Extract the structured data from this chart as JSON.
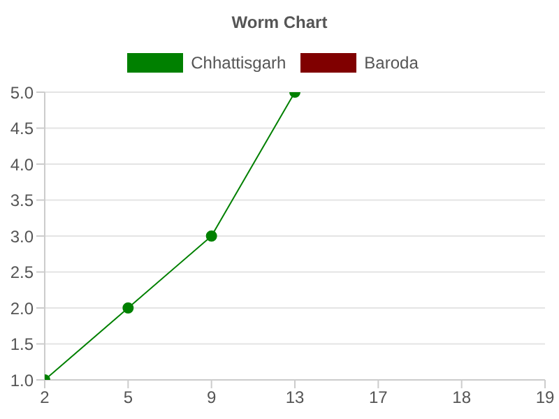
{
  "chart_data": {
    "type": "line",
    "title": "Worm Chart",
    "categories": [
      "2",
      "5",
      "9",
      "13",
      "17",
      "18",
      "19"
    ],
    "series": [
      {
        "name": "Chhattisgarh",
        "color": "#008000",
        "values": [
          1,
          2,
          3,
          5,
          null,
          null,
          null
        ]
      },
      {
        "name": "Baroda",
        "color": "#800000",
        "values": [
          null,
          null,
          null,
          null,
          null,
          null,
          null
        ]
      }
    ],
    "ylim": [
      1,
      5
    ],
    "yticks": [
      {
        "value": 1,
        "label": "1.0"
      },
      {
        "value": 1.5,
        "label": "1.5"
      },
      {
        "value": 2,
        "label": "2.0"
      },
      {
        "value": 2.5,
        "label": "2.5"
      },
      {
        "value": 3,
        "label": "3.0"
      },
      {
        "value": 3.5,
        "label": "3.5"
      },
      {
        "value": 4,
        "label": "4.0"
      },
      {
        "value": 4.5,
        "label": "4.5"
      },
      {
        "value": 5,
        "label": "5.0"
      }
    ],
    "grid": "y",
    "legend": "top",
    "marker": "circle",
    "line_style": "solid"
  }
}
